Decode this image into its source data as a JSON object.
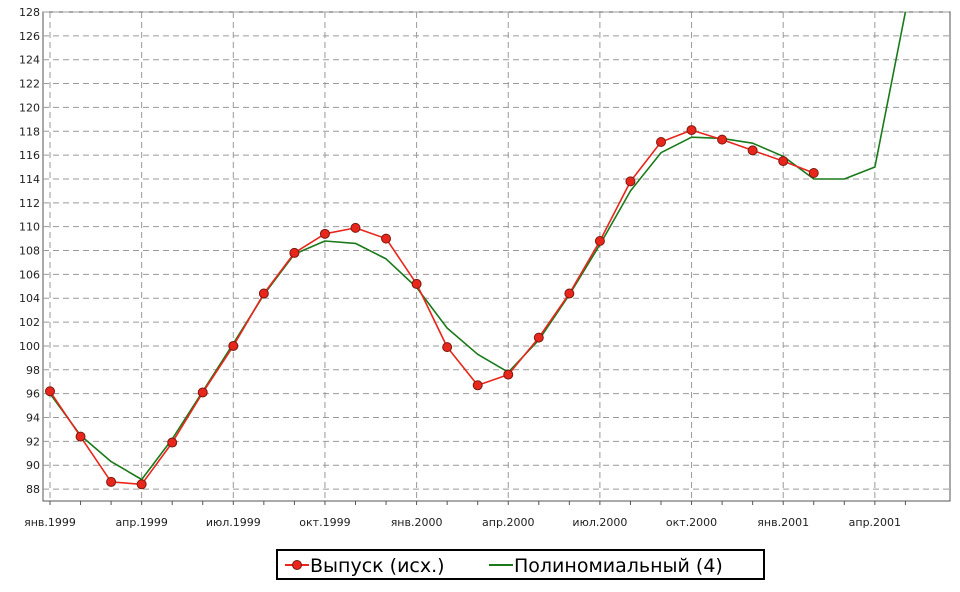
{
  "chart_data": {
    "type": "line",
    "title": "",
    "xlabel": "",
    "ylabel": "",
    "ylim": [
      87,
      128
    ],
    "grid": true,
    "legend_placement": "bottom-center",
    "y_ticks": [
      88,
      90,
      92,
      94,
      96,
      98,
      100,
      102,
      104,
      106,
      108,
      110,
      112,
      114,
      116,
      118,
      120,
      122,
      124,
      126,
      128
    ],
    "x_ticks": [
      "янв.1999",
      "апр.1999",
      "июл.1999",
      "окт.1999",
      "янв.2000",
      "апр.2000",
      "июл.2000",
      "окт.2000",
      "янв.2001",
      "апр.2001"
    ],
    "months": 28,
    "series": [
      {
        "name": "Выпуск (исх.)",
        "color": "#e8261b",
        "marker": "circle",
        "x": [
          0,
          1,
          2,
          3,
          4,
          5,
          6,
          7,
          8,
          9,
          10,
          11,
          12,
          13,
          14,
          15,
          16,
          17,
          18,
          19,
          20,
          21,
          22,
          23,
          24,
          25
        ],
        "values": [
          96.2,
          92.4,
          88.6,
          88.4,
          91.9,
          96.1,
          100.0,
          104.4,
          107.8,
          109.4,
          109.9,
          109.0,
          105.2,
          99.9,
          96.7,
          97.6,
          100.7,
          104.4,
          108.8,
          113.8,
          117.1,
          118.1,
          117.3,
          116.4,
          115.5,
          114.5
        ]
      },
      {
        "name": "Полиномиальный (4)",
        "color": "#1a7a1a",
        "marker": "none",
        "x": [
          0,
          1,
          2,
          3,
          4,
          5,
          6,
          7,
          8,
          9,
          10,
          11,
          12,
          13,
          14,
          15,
          16,
          17,
          18,
          19,
          20,
          21,
          22,
          23,
          24,
          25,
          26,
          27,
          28
        ],
        "values": [
          96.0,
          92.5,
          90.3,
          88.8,
          92.2,
          96.2,
          100.2,
          104.3,
          107.7,
          108.8,
          108.6,
          107.3,
          104.9,
          101.5,
          99.3,
          97.8,
          100.5,
          104.3,
          108.5,
          113.0,
          116.2,
          117.5,
          117.4,
          117.0,
          115.9,
          114.0,
          114.0,
          115.0,
          128.0
        ]
      }
    ]
  },
  "legend": {
    "series1_label": "Выпуск (исх.)",
    "series2_label": "Полиномиальный (4)"
  }
}
